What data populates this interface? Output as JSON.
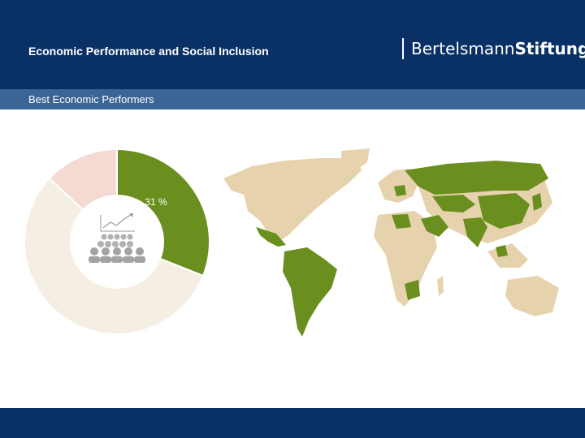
{
  "header": {
    "title": "Economic Performance and Social Inclusion",
    "logo_part1": "Bertelsmann",
    "logo_part2": "Stiftung"
  },
  "subheader": {
    "title": "Best Economic Performers"
  },
  "chart_data": {
    "type": "pie",
    "style": "donut",
    "segments": [
      {
        "value": 31,
        "color": "#6a8f1e",
        "label": "31 %"
      },
      {
        "value": 56,
        "color": "#f5efe3",
        "label": ""
      },
      {
        "value": 13,
        "color": "#f5d9d3",
        "label": ""
      }
    ],
    "center_icon": "audience-growth-icon"
  },
  "map": {
    "icon": "world-map-icon",
    "highlight_color": "#6a8f1e",
    "base_color": "#e6d3ae"
  }
}
